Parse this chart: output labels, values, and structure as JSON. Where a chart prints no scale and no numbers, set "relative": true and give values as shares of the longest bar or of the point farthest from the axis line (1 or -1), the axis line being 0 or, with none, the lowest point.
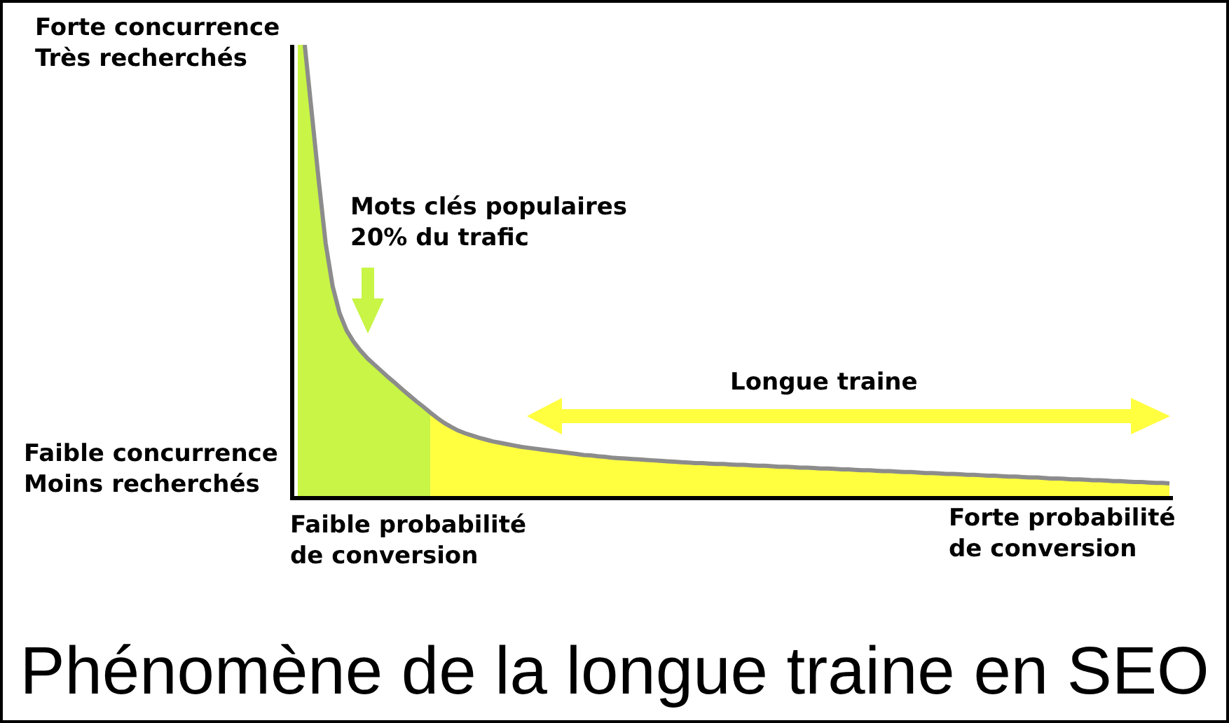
{
  "chart_data": {
    "type": "area",
    "title": "Phénomène de la longue traine en SEO",
    "relative": true,
    "line_style": "solid",
    "annotations": [
      "Forte concurrence\nTrès recherchés",
      "Mots clés populaires\n20% du trafic",
      "Longue traine",
      "Faible concurrence\nMoins recherchés",
      "Faible probabilité\nde conversion",
      "Forte probabilité\nde conversion"
    ],
    "categories": [
      null,
      null,
      null,
      null,
      null,
      null,
      null,
      null,
      null,
      null,
      null,
      null,
      null,
      null,
      null,
      null,
      null,
      null,
      null,
      null,
      null,
      null,
      null,
      null,
      null,
      null,
      null,
      null,
      null,
      null,
      null,
      null,
      null,
      null,
      null,
      null,
      null,
      null,
      null,
      null,
      null,
      null,
      null,
      null,
      null,
      null,
      null,
      null,
      null,
      null,
      null,
      null,
      null,
      null,
      null,
      null,
      null,
      null,
      null,
      null,
      null,
      null,
      null,
      null,
      null,
      null,
      null,
      null,
      null,
      null,
      null,
      null,
      null,
      null,
      null,
      null,
      null,
      null,
      null,
      null,
      null,
      null,
      null,
      null,
      null,
      null,
      null,
      null,
      null,
      null,
      null,
      null,
      null,
      null,
      null,
      null,
      null,
      null,
      null,
      null,
      null,
      null,
      null,
      null,
      null,
      null,
      null,
      null,
      null,
      null,
      null,
      null,
      null,
      null,
      null,
      null,
      null,
      null,
      null,
      null,
      null,
      null,
      null,
      null,
      null,
      null
    ],
    "series": [
      {
        "color": "#c8f546",
        "values": [
          1,
          1,
          0.85,
          0.7,
          0.56,
          0.465,
          0.405,
          0.367,
          0.342,
          0.322,
          0.305,
          0.291,
          0.277,
          0.263,
          0.25,
          0.236,
          0.223,
          0.21,
          0.198,
          0.185,
          null,
          null,
          null,
          null,
          null,
          null,
          null,
          null,
          null,
          null,
          null,
          null,
          null,
          null,
          null,
          null,
          null,
          null,
          null,
          null,
          null,
          null,
          null,
          null,
          null,
          null,
          null,
          null,
          null,
          null,
          null,
          null,
          null,
          null,
          null,
          null,
          null,
          null,
          null,
          null,
          null,
          null,
          null,
          null,
          null,
          null,
          null,
          null,
          null,
          null,
          null,
          null,
          null,
          null,
          null,
          null,
          null,
          null,
          null,
          null,
          null,
          null,
          null,
          null,
          null,
          null,
          null,
          null,
          null,
          null,
          null,
          null,
          null,
          null,
          null,
          null,
          null,
          null,
          null,
          null,
          null,
          null,
          null,
          null,
          null,
          null,
          null,
          null,
          null,
          null,
          null,
          null,
          null,
          null,
          null,
          null,
          null,
          null,
          null,
          null,
          null,
          null,
          null,
          null,
          null,
          null
        ]
      },
      {
        "color": "#ffff40",
        "values": [
          null,
          null,
          null,
          null,
          null,
          null,
          null,
          null,
          null,
          null,
          null,
          null,
          null,
          null,
          null,
          null,
          null,
          null,
          null,
          0.185,
          0.173,
          0.162,
          0.153,
          0.145,
          0.139,
          0.134,
          0.129,
          0.125,
          0.121,
          0.118,
          0.115,
          0.112,
          0.109,
          0.107,
          0.105,
          0.103,
          0.101,
          0.099,
          0.097,
          0.095,
          0.093,
          0.091,
          0.09,
          0.088,
          0.087,
          0.085,
          0.084,
          0.083,
          0.082,
          0.081,
          0.08,
          0.079,
          0.078,
          0.077,
          0.076,
          0.075,
          0.074,
          0.073,
          0.073,
          0.072,
          0.071,
          0.071,
          0.07,
          0.069,
          0.069,
          0.068,
          0.067,
          0.067,
          0.066,
          0.065,
          0.065,
          0.064,
          0.063,
          0.063,
          0.062,
          0.061,
          0.061,
          0.06,
          0.059,
          0.059,
          0.058,
          0.057,
          0.057,
          0.056,
          0.055,
          0.055,
          0.054,
          0.053,
          0.053,
          0.052,
          0.051,
          0.051,
          0.05,
          0.049,
          0.049,
          0.048,
          0.047,
          0.047,
          0.046,
          0.045,
          0.045,
          0.044,
          0.043,
          0.043,
          0.042,
          0.041,
          0.041,
          0.04,
          0.039,
          0.039,
          0.038,
          0.037,
          0.037,
          0.036,
          0.035,
          0.035,
          0.034,
          0.033,
          0.033,
          0.032,
          0.031,
          0.031,
          0.03,
          0.029,
          0.029,
          0.028
        ]
      },
      {
        "type": "line",
        "color": "#8c8c8c",
        "values": [
          null,
          1,
          0.85,
          0.7,
          0.56,
          0.465,
          0.405,
          0.367,
          0.342,
          0.322,
          0.305,
          0.291,
          0.277,
          0.263,
          0.25,
          0.236,
          0.223,
          0.21,
          0.198,
          0.185,
          0.173,
          0.162,
          0.153,
          0.145,
          0.139,
          0.134,
          0.129,
          0.125,
          0.121,
          0.118,
          0.115,
          0.112,
          0.109,
          0.107,
          0.105,
          0.103,
          0.101,
          0.099,
          0.097,
          0.095,
          0.093,
          0.091,
          0.09,
          0.088,
          0.087,
          0.085,
          0.084,
          0.083,
          0.082,
          0.081,
          0.08,
          0.079,
          0.078,
          0.077,
          0.076,
          0.075,
          0.074,
          0.073,
          0.073,
          0.072,
          0.071,
          0.071,
          0.07,
          0.069,
          0.069,
          0.068,
          0.067,
          0.067,
          0.066,
          0.065,
          0.065,
          0.064,
          0.063,
          0.063,
          0.062,
          0.061,
          0.061,
          0.06,
          0.059,
          0.059,
          0.058,
          0.057,
          0.057,
          0.056,
          0.055,
          0.055,
          0.054,
          0.053,
          0.053,
          0.052,
          0.051,
          0.051,
          0.05,
          0.049,
          0.049,
          0.048,
          0.047,
          0.047,
          0.046,
          0.045,
          0.045,
          0.044,
          0.043,
          0.043,
          0.042,
          0.041,
          0.041,
          0.04,
          0.039,
          0.039,
          0.038,
          0.037,
          0.037,
          0.036,
          0.035,
          0.035,
          0.034,
          0.033,
          0.033,
          0.032,
          0.031,
          0.031,
          0.03,
          0.029,
          0.029,
          0.028
        ]
      }
    ]
  }
}
